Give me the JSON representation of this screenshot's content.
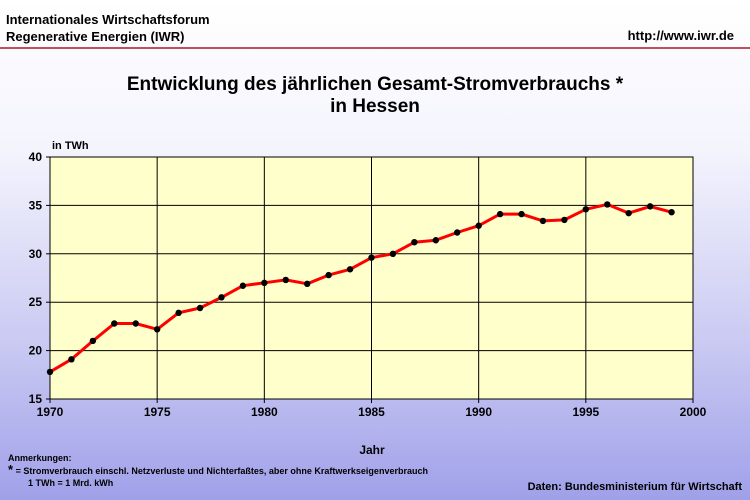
{
  "header": {
    "org_line1": "Internationales Wirtschaftsforum",
    "org_line2": "Regenerative Energien (IWR)",
    "url": "http://www.iwr.de"
  },
  "chart_data": {
    "type": "line",
    "title": "Entwicklung des jährlichen Gesamt-Stromverbrauchs *",
    "subtitle": "in Hessen",
    "ylabel": "in TWh",
    "xlabel": "Jahr",
    "xlim": [
      1970,
      2000
    ],
    "ylim": [
      15,
      40
    ],
    "xticks": [
      "1970",
      "1975",
      "1980",
      "1985",
      "1990",
      "1995",
      "2000"
    ],
    "yticks": [
      "15",
      "20",
      "25",
      "30",
      "35",
      "40"
    ],
    "grid": true,
    "line_color": "#ff0000",
    "marker_color": "#000000",
    "plot_background": "#ffffcc",
    "series": [
      {
        "x": [
          1970,
          1971,
          1972,
          1973,
          1974,
          1975,
          1976,
          1977,
          1978,
          1979,
          1980,
          1981,
          1982,
          1983,
          1984,
          1985,
          1986,
          1987,
          1988,
          1989,
          1990,
          1991,
          1992,
          1993,
          1994,
          1995,
          1996,
          1997,
          1998,
          1999
        ],
        "values": [
          17.8,
          19.1,
          21.0,
          22.8,
          22.8,
          22.2,
          23.9,
          24.4,
          25.5,
          26.7,
          27.0,
          27.3,
          26.9,
          27.8,
          28.4,
          29.6,
          30.0,
          31.2,
          31.4,
          32.2,
          32.9,
          34.1,
          34.1,
          33.4,
          33.5,
          34.6,
          35.1,
          34.2,
          34.9,
          34.3
        ]
      }
    ]
  },
  "notes": {
    "heading": "Anmerkungen:",
    "star": "*",
    "line1": "= Stromverbrauch einschl. Netzverluste und Nichterfaßtes, aber ohne Kraftwerkseigenverbrauch",
    "line2": "1 TWh = 1 Mrd. kWh"
  },
  "source": "Daten: Bundesministerium für Wirtschaft"
}
